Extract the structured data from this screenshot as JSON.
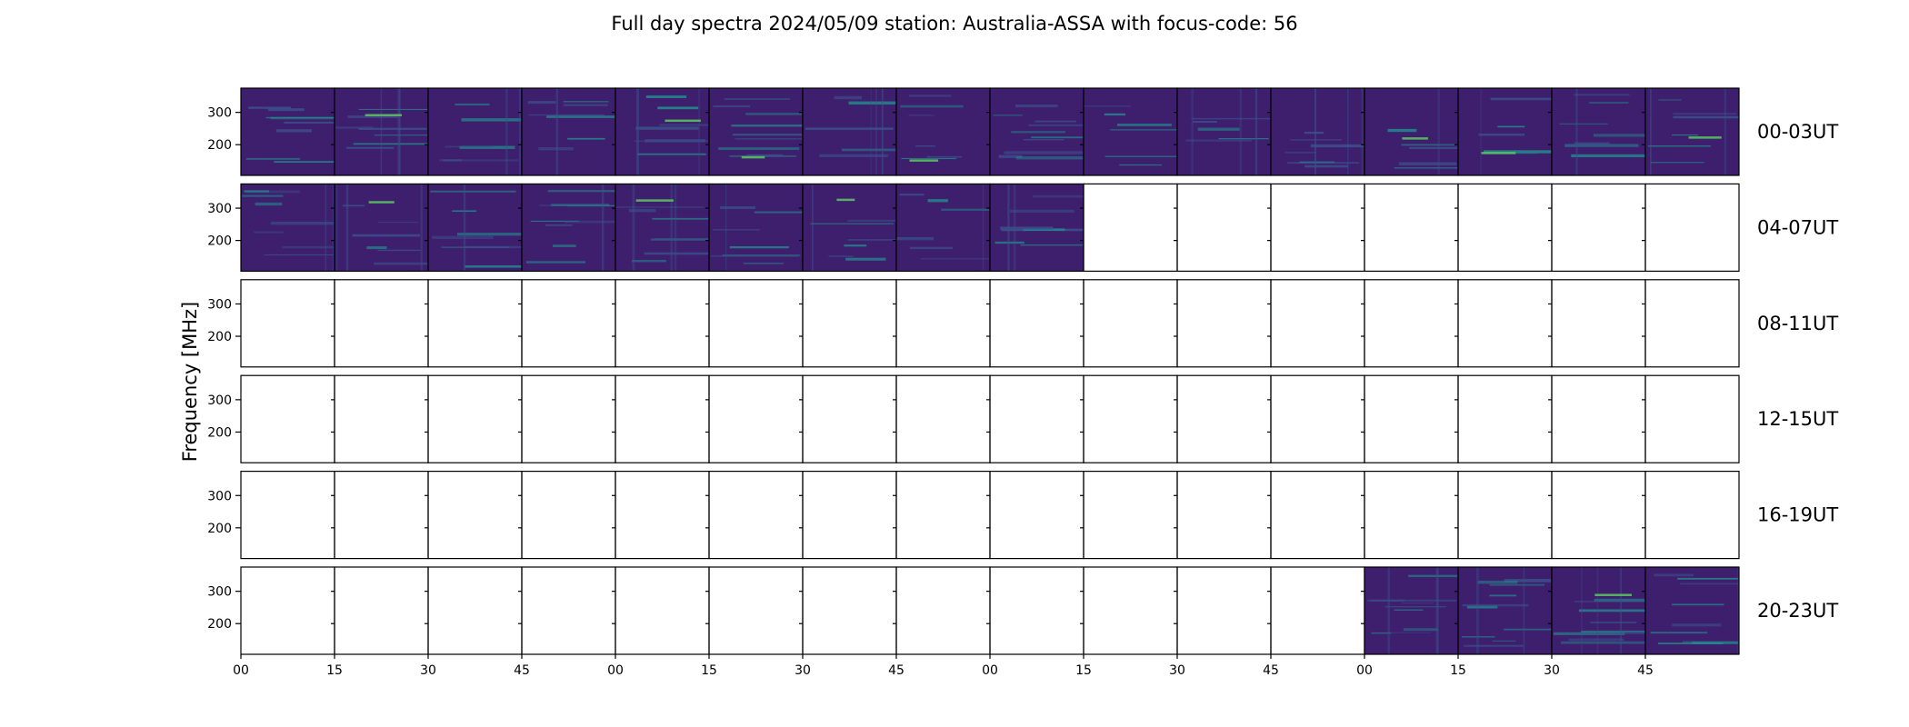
{
  "chart_data": {
    "type": "heatmap",
    "title": "Full day spectra 2024/05/09 station: Australia-ASSA with focus-code: 56",
    "ylabel": "Frequency [MHz]",
    "xlabel": "",
    "yticks": [
      200,
      300
    ],
    "ylim": [
      105,
      375
    ],
    "xtick_labels": [
      "00",
      "15",
      "30",
      "45",
      "00",
      "15",
      "30",
      "45",
      "00",
      "15",
      "30",
      "45",
      "00",
      "15",
      "30",
      "45"
    ],
    "rows": [
      {
        "label": "00-03UT",
        "filled_segments": 16
      },
      {
        "label": "04-07UT",
        "filled_segments": 9
      },
      {
        "label": "08-11UT",
        "filled_segments": 0
      },
      {
        "label": "12-15UT",
        "filled_segments": 0
      },
      {
        "label": "16-19UT",
        "filled_segments": 0
      },
      {
        "label": "20-23UT",
        "filled_segments": 4,
        "filled_from_end": true
      }
    ],
    "colormap": [
      "#440154",
      "#3b528b",
      "#21908d",
      "#5dc962"
    ],
    "background": "#3e1f6e",
    "grid": false,
    "legend": "none"
  }
}
